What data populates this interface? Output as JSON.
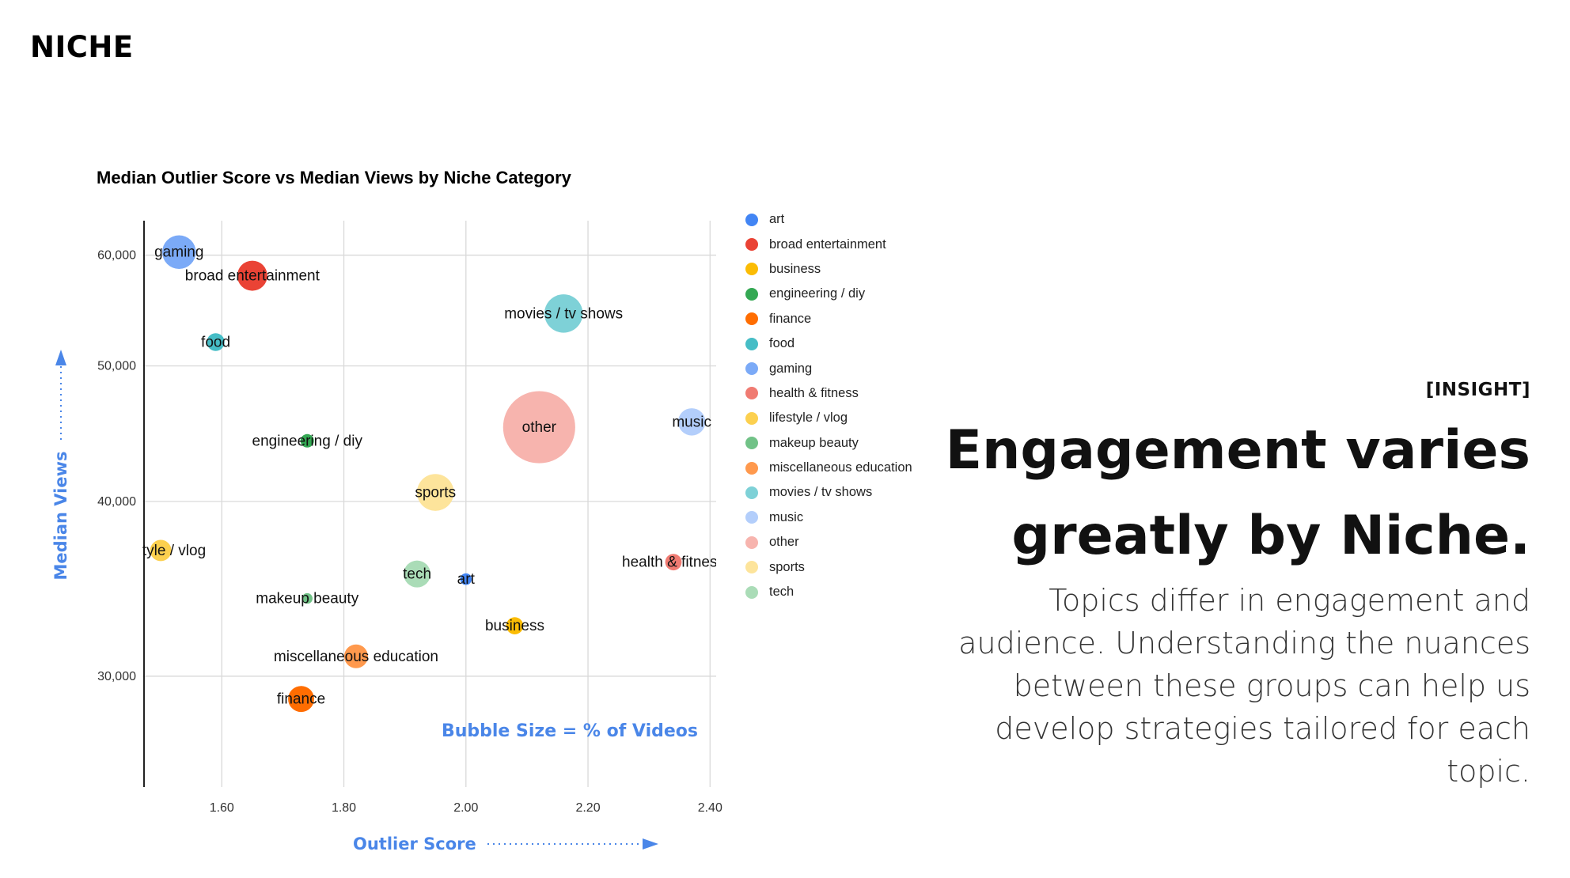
{
  "brand": "NICHE",
  "insight": {
    "tag": "[INSIGHT]",
    "headline_line1": "Engagement varies",
    "headline_line2": "greatly by Niche.",
    "body": "Topics differ in engagement and audience. Understanding the nuances between these groups can help us develop strategies tailored for each topic."
  },
  "chart_data": {
    "type": "scatter",
    "title": "Median Outlier Score vs Median Views by Niche Category",
    "xlabel": "Outlier Score",
    "ylabel": "Median Views",
    "annotation": "Bubble Size = % of Videos",
    "xlim": [
      1.47,
      2.41
    ],
    "ylim": [
      25000,
      63500
    ],
    "y_scale": "log",
    "x_ticks": [
      "1.60",
      "1.80",
      "2.00",
      "2.20",
      "2.40"
    ],
    "x_tick_values": [
      1.6,
      1.8,
      2.0,
      2.2,
      2.4
    ],
    "y_ticks": [
      "30,000",
      "40,000",
      "50,000",
      "60,000"
    ],
    "y_tick_values": [
      30000,
      40000,
      50000,
      60000
    ],
    "grid": true,
    "legend_position": "right",
    "series": [
      {
        "name": "art",
        "color": "#4285F4",
        "x": 2.0,
        "y": 35200,
        "size": 0.6
      },
      {
        "name": "broad entertainment",
        "color": "#EA4335",
        "x": 1.65,
        "y": 58000,
        "size": 4
      },
      {
        "name": "business",
        "color": "#FBBC04",
        "x": 2.08,
        "y": 32600,
        "size": 1.3
      },
      {
        "name": "engineering / diy",
        "color": "#34A853",
        "x": 1.74,
        "y": 44200,
        "size": 0.8
      },
      {
        "name": "finance",
        "color": "#FF6D01",
        "x": 1.73,
        "y": 28900,
        "size": 3
      },
      {
        "name": "food",
        "color": "#46BDC6",
        "x": 1.59,
        "y": 52000,
        "size": 1.4
      },
      {
        "name": "gaming",
        "color": "#7BAAF7",
        "x": 1.53,
        "y": 60300,
        "size": 5
      },
      {
        "name": "health & fitness",
        "color": "#F07B72",
        "x": 2.34,
        "y": 36200,
        "size": 1.2
      },
      {
        "name": "lifestyle / vlog",
        "color": "#FCD04F",
        "x": 1.5,
        "y": 36900,
        "size": 2
      },
      {
        "name": "makeup beauty",
        "color": "#71C287",
        "x": 1.74,
        "y": 34100,
        "size": 0.5
      },
      {
        "name": "miscellaneous education",
        "color": "#FF994D",
        "x": 1.82,
        "y": 31000,
        "size": 2.5
      },
      {
        "name": "movies / tv shows",
        "color": "#7ED1D7",
        "x": 2.16,
        "y": 54500,
        "size": 6.5
      },
      {
        "name": "music",
        "color": "#B3CEFB",
        "x": 2.37,
        "y": 45600,
        "size": 3.3
      },
      {
        "name": "other",
        "color": "#F7B4AE",
        "x": 2.12,
        "y": 45200,
        "size": 23
      },
      {
        "name": "sports",
        "color": "#FDE49B",
        "x": 1.95,
        "y": 40600,
        "size": 6
      },
      {
        "name": "tech",
        "color": "#AADCB7",
        "x": 1.92,
        "y": 35500,
        "size": 3.2
      }
    ]
  }
}
